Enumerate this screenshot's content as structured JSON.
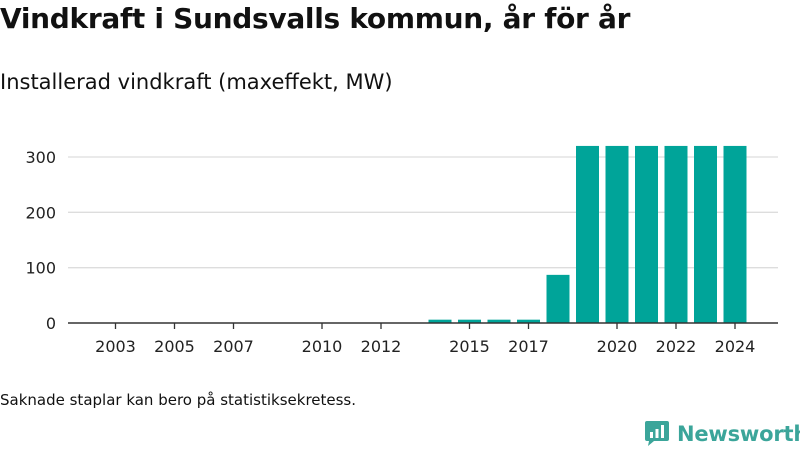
{
  "header": {
    "title": "Vindkraft i Sundsvalls kommun, år för år",
    "subtitle": "Installerad vindkraft (maxeffekt, MW)"
  },
  "footer": {
    "note": "Saknade staplar kan bero på statistiksekretess.",
    "brand": "Newsworthy",
    "brand_icon": "newsworthy-logo-icon"
  },
  "colors": {
    "bar": "#00a499",
    "grid": "#dddddd",
    "axis": "#333333",
    "brand": "#3ba59a"
  },
  "chart_data": {
    "type": "bar",
    "title": "Installerad vindkraft (maxeffekt, MW)",
    "xlabel": "",
    "ylabel": "",
    "categories": [
      2002,
      2003,
      2004,
      2005,
      2006,
      2007,
      2008,
      2009,
      2010,
      2011,
      2012,
      2013,
      2014,
      2015,
      2016,
      2017,
      2018,
      2019,
      2020,
      2021,
      2022,
      2023,
      2024
    ],
    "values": [
      0,
      0,
      0,
      0,
      0,
      0,
      null,
      null,
      0,
      0,
      0,
      null,
      6,
      6,
      6,
      6,
      87,
      320,
      320,
      320,
      320,
      320,
      320
    ],
    "x_ticks": [
      2003,
      2005,
      2007,
      2010,
      2012,
      2015,
      2017,
      2020,
      2022,
      2024
    ],
    "y_ticks": [
      0,
      100,
      200,
      300
    ],
    "ylim": [
      0,
      330
    ],
    "grid": true,
    "legend": "none"
  }
}
